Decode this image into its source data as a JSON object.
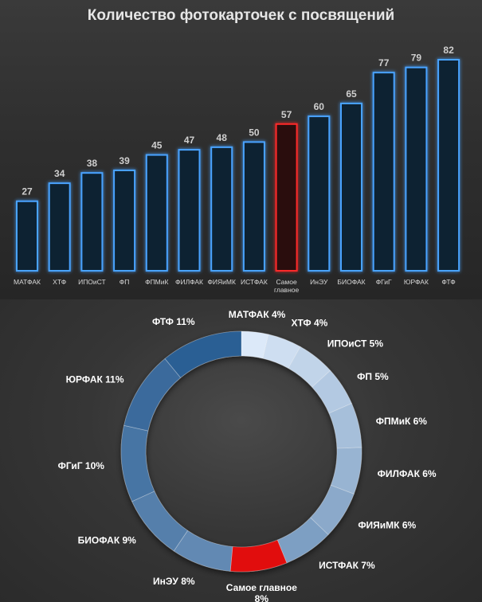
{
  "colors": {
    "bar_stroke": "#4aa3ff",
    "bar_fill": "#0d2033",
    "bar_highlight_stroke": "#ff2a2a",
    "bar_highlight_fill": "#2a0c0c",
    "value_label": "#cfcfcf",
    "category_label": "#d8d8d8",
    "donut_dark": "#2c5f94",
    "donut_light": "#dce9f9",
    "donut_highlight": "#e11010",
    "donut_label": "#ffffff"
  },
  "chart_data": [
    {
      "type": "bar",
      "title": "Количество фотокарточек с посвящений",
      "categories": [
        "МАТФАК",
        "ХТФ",
        "ИПОиСТ",
        "ФП",
        "ФПМиК",
        "ФИЛФАК",
        "ФИЯиМК",
        "ИСТФАК",
        "Самое главное",
        "ИнЭУ",
        "БИОФАК",
        "ФГиГ",
        "ЮРФАК",
        "ФТФ"
      ],
      "values": [
        27,
        34,
        38,
        39,
        45,
        47,
        48,
        50,
        57,
        60,
        65,
        77,
        79,
        82
      ],
      "highlight": "Самое главное",
      "ylim": [
        0,
        82
      ],
      "grid": false,
      "legend": "none"
    },
    {
      "type": "pie",
      "variant": "donut",
      "labels": [
        "МАТФАК",
        "ХТФ",
        "ИПОиСТ",
        "ФП",
        "ФПМиК",
        "ФИЛФАК",
        "ФИЯиМК",
        "ИСТФАК",
        "Самое главное",
        "ИнЭУ",
        "БИОФАК",
        "ФГиГ",
        "ЮРФАК",
        "ФТФ"
      ],
      "percent_labels": [
        "4%",
        "4%",
        "5%",
        "5%",
        "6%",
        "6%",
        "6%",
        "7%",
        "8%",
        "8%",
        "9%",
        "10%",
        "11%",
        "11%"
      ],
      "values": [
        27,
        34,
        38,
        39,
        45,
        47,
        48,
        50,
        57,
        60,
        65,
        77,
        79,
        82
      ],
      "highlight": "Самое главное",
      "start": "top",
      "direction": "clockwise"
    }
  ]
}
